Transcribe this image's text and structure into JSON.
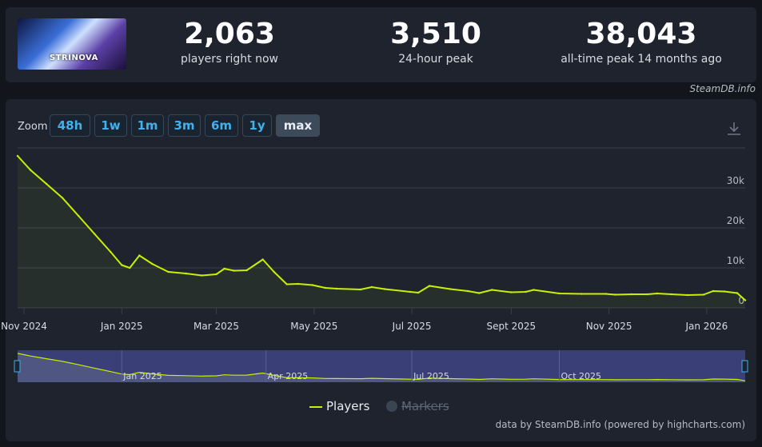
{
  "header": {
    "game_logo_text": "STRINOVA",
    "stats": [
      {
        "value": "2,063",
        "label": "players right now"
      },
      {
        "value": "3,510",
        "label": "24-hour peak"
      },
      {
        "value": "38,043",
        "label": "all-time peak 14 months ago"
      }
    ],
    "credit": "SteamDB.info"
  },
  "zoom": {
    "label": "Zoom",
    "buttons": [
      "48h",
      "1w",
      "1m",
      "3m",
      "6m",
      "1y",
      "max"
    ],
    "active": "max"
  },
  "colors": {
    "line": "#c8f000",
    "accent": "#3fb2ee",
    "navigator_bg": "#3a4077",
    "grid": "#3a414d",
    "background": "#1e232d"
  },
  "chart_data": {
    "type": "line",
    "series": [
      {
        "name": "Players",
        "x": [
          "2024-10-28",
          "2024-11-05",
          "2024-11-15",
          "2024-11-25",
          "2024-12-05",
          "2024-12-15",
          "2024-12-25",
          "2025-01-01",
          "2025-01-06",
          "2025-01-12",
          "2025-01-20",
          "2025-01-30",
          "2025-02-10",
          "2025-02-20",
          "2025-03-01",
          "2025-03-06",
          "2025-03-12",
          "2025-03-20",
          "2025-03-30",
          "2025-04-06",
          "2025-04-14",
          "2025-04-21",
          "2025-04-30",
          "2025-05-08",
          "2025-05-15",
          "2025-05-30",
          "2025-06-06",
          "2025-06-14",
          "2025-06-30",
          "2025-07-05",
          "2025-07-12",
          "2025-07-25",
          "2025-08-05",
          "2025-08-12",
          "2025-08-20",
          "2025-09-01",
          "2025-09-10",
          "2025-09-15",
          "2025-10-01",
          "2025-10-15",
          "2025-10-30",
          "2025-11-05",
          "2025-11-15",
          "2025-11-25",
          "2025-12-01",
          "2025-12-10",
          "2025-12-20",
          "2025-12-30",
          "2026-01-05",
          "2026-01-12",
          "2026-01-20",
          "2026-01-25"
        ],
        "y": [
          38000,
          34500,
          31000,
          27500,
          23000,
          18500,
          14000,
          10700,
          10000,
          13100,
          11000,
          9000,
          8600,
          8100,
          8400,
          9800,
          9300,
          9400,
          12100,
          9000,
          5900,
          6000,
          5700,
          5000,
          4800,
          4600,
          5200,
          4700,
          4000,
          3800,
          5500,
          4700,
          4200,
          3700,
          4500,
          3900,
          4000,
          4500,
          3600,
          3500,
          3500,
          3300,
          3400,
          3400,
          3600,
          3400,
          3200,
          3300,
          4200,
          4100,
          3700,
          1900
        ]
      }
    ],
    "xlabels": [
      {
        "date": "2024-11-01",
        "text": "Nov 2024"
      },
      {
        "date": "2025-01-01",
        "text": "Jan 2025"
      },
      {
        "date": "2025-03-01",
        "text": "Mar 2025"
      },
      {
        "date": "2025-05-01",
        "text": "May 2025"
      },
      {
        "date": "2025-07-01",
        "text": "Jul 2025"
      },
      {
        "date": "2025-09-01",
        "text": "Sept 2025"
      },
      {
        "date": "2025-11-01",
        "text": "Nov 2025"
      },
      {
        "date": "2026-01-01",
        "text": "Jan 2026"
      }
    ],
    "yticks": [
      {
        "value": 0,
        "text": "0"
      },
      {
        "value": 10000,
        "text": "10k"
      },
      {
        "value": 20000,
        "text": "20k"
      },
      {
        "value": 30000,
        "text": "30k"
      }
    ],
    "ylim": [
      0,
      40000
    ],
    "xlim": [
      "2024-10-28",
      "2026-01-25"
    ],
    "navigator_labels": [
      {
        "date": "2025-01-01",
        "text": "Jan 2025"
      },
      {
        "date": "2025-04-01",
        "text": "Apr 2025"
      },
      {
        "date": "2025-07-01",
        "text": "Jul 2025"
      },
      {
        "date": "2025-10-01",
        "text": "Oct 2025"
      }
    ],
    "grid": true,
    "legend": {
      "position": "bottom-center",
      "items": [
        "Players",
        "Markers"
      ]
    }
  },
  "footer": {
    "credit": "data by SteamDB.info (powered by highcharts.com)"
  }
}
